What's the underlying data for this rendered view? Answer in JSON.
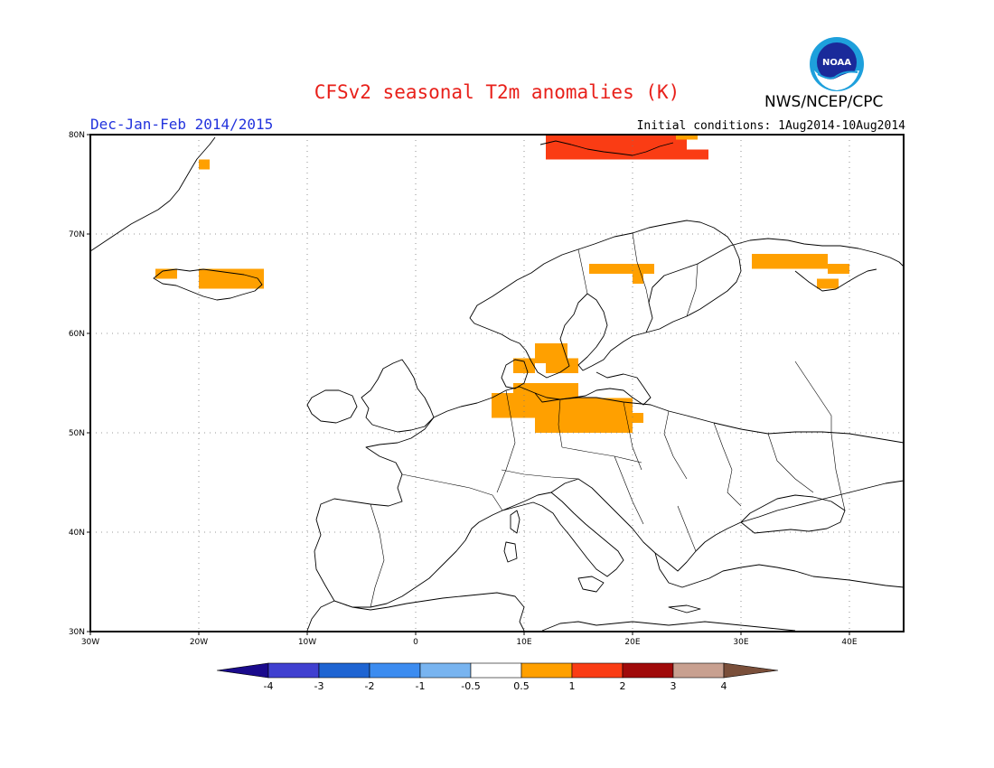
{
  "title": "CFSv2 seasonal T2m anomalies (K)",
  "agency": "NWS/NCEP/CPC",
  "logo_text": "NOAA",
  "season": "Dec-Jan-Feb 2014/2015",
  "initial_conditions": "Initial conditions: 1Aug2014-10Aug2014",
  "map": {
    "lon_range": [
      -30,
      45
    ],
    "lat_range": [
      30,
      80
    ],
    "gridlines": "dotted",
    "lon_ticks": [
      {
        "value": -30,
        "label": "30W"
      },
      {
        "value": -20,
        "label": "20W"
      },
      {
        "value": -10,
        "label": "10W"
      },
      {
        "value": 0,
        "label": "0"
      },
      {
        "value": 10,
        "label": "10E"
      },
      {
        "value": 20,
        "label": "20E"
      },
      {
        "value": 30,
        "label": "30E"
      },
      {
        "value": 40,
        "label": "40E"
      }
    ],
    "lat_ticks": [
      {
        "value": 30,
        "label": "30N"
      },
      {
        "value": 40,
        "label": "40N"
      },
      {
        "value": 50,
        "label": "50N"
      },
      {
        "value": 60,
        "label": "60N"
      },
      {
        "value": 70,
        "label": "70N"
      },
      {
        "value": 80,
        "label": "80N"
      }
    ]
  },
  "colorbar": {
    "colors": [
      "#1a0a8c",
      "#4040d0",
      "#1e64d2",
      "#3c8cf0",
      "#78b4f0",
      "#ffffff",
      "#ffa000",
      "#fa3c14",
      "#a00a0a",
      "#c8a090",
      "#7a4f3a"
    ],
    "labels": [
      "-4",
      "-3",
      "-2",
      "-1",
      "-0.5",
      "0.5",
      "1",
      "2",
      "3",
      "4"
    ]
  },
  "anomaly_regions": [
    {
      "name": "svalbard",
      "color": "#fa3c14",
      "lat": [
        77.5,
        80
      ],
      "lon": [
        12,
        25
      ]
    },
    {
      "name": "svalbard-east",
      "color": "#fa3c14",
      "lat": [
        77.5,
        78.5
      ],
      "lon": [
        23,
        27
      ]
    },
    {
      "name": "svalbard-small",
      "color": "#ffa000",
      "lat": [
        79.5,
        80
      ],
      "lon": [
        24,
        26
      ]
    },
    {
      "name": "greenland-east",
      "color": "#ffa000",
      "lat": [
        76.5,
        77.5
      ],
      "lon": [
        -20,
        -19
      ]
    },
    {
      "name": "iceland",
      "color": "#ffa000",
      "lat": [
        64.5,
        66.5
      ],
      "lon": [
        -20,
        -14
      ]
    },
    {
      "name": "iceland-west",
      "color": "#ffa000",
      "lat": [
        65.5,
        66.5
      ],
      "lon": [
        -24,
        -22
      ]
    },
    {
      "name": "sweden-north",
      "color": "#ffa000",
      "lat": [
        66,
        67
      ],
      "lon": [
        16,
        22
      ]
    },
    {
      "name": "sweden-north-tail",
      "color": "#ffa000",
      "lat": [
        65,
        66
      ],
      "lon": [
        20,
        21
      ]
    },
    {
      "name": "kola",
      "color": "#ffa000",
      "lat": [
        66.5,
        68
      ],
      "lon": [
        31,
        38
      ]
    },
    {
      "name": "kola-east",
      "color": "#ffa000",
      "lat": [
        66,
        67
      ],
      "lon": [
        38,
        40
      ]
    },
    {
      "name": "white-sea",
      "color": "#ffa000",
      "lat": [
        64.5,
        65.5
      ],
      "lon": [
        37,
        39
      ]
    },
    {
      "name": "south-sweden",
      "color": "#ffa000",
      "lat": [
        57,
        59
      ],
      "lon": [
        11,
        14
      ]
    },
    {
      "name": "south-sweden-b",
      "color": "#ffa000",
      "lat": [
        56,
        57.5
      ],
      "lon": [
        12,
        15
      ]
    },
    {
      "name": "denmark",
      "color": "#ffa000",
      "lat": [
        56,
        57.5
      ],
      "lon": [
        9,
        11
      ]
    },
    {
      "name": "germany-poland",
      "color": "#ffa000",
      "lat": [
        50,
        53.5
      ],
      "lon": [
        11,
        20
      ]
    },
    {
      "name": "germany-west",
      "color": "#ffa000",
      "lat": [
        51.5,
        54
      ],
      "lon": [
        7,
        11
      ]
    },
    {
      "name": "baltic-coast",
      "color": "#ffa000",
      "lat": [
        53.5,
        55
      ],
      "lon": [
        9,
        15
      ]
    },
    {
      "name": "poland-east",
      "color": "#ffa000",
      "lat": [
        51,
        52
      ],
      "lon": [
        19,
        21
      ]
    }
  ]
}
